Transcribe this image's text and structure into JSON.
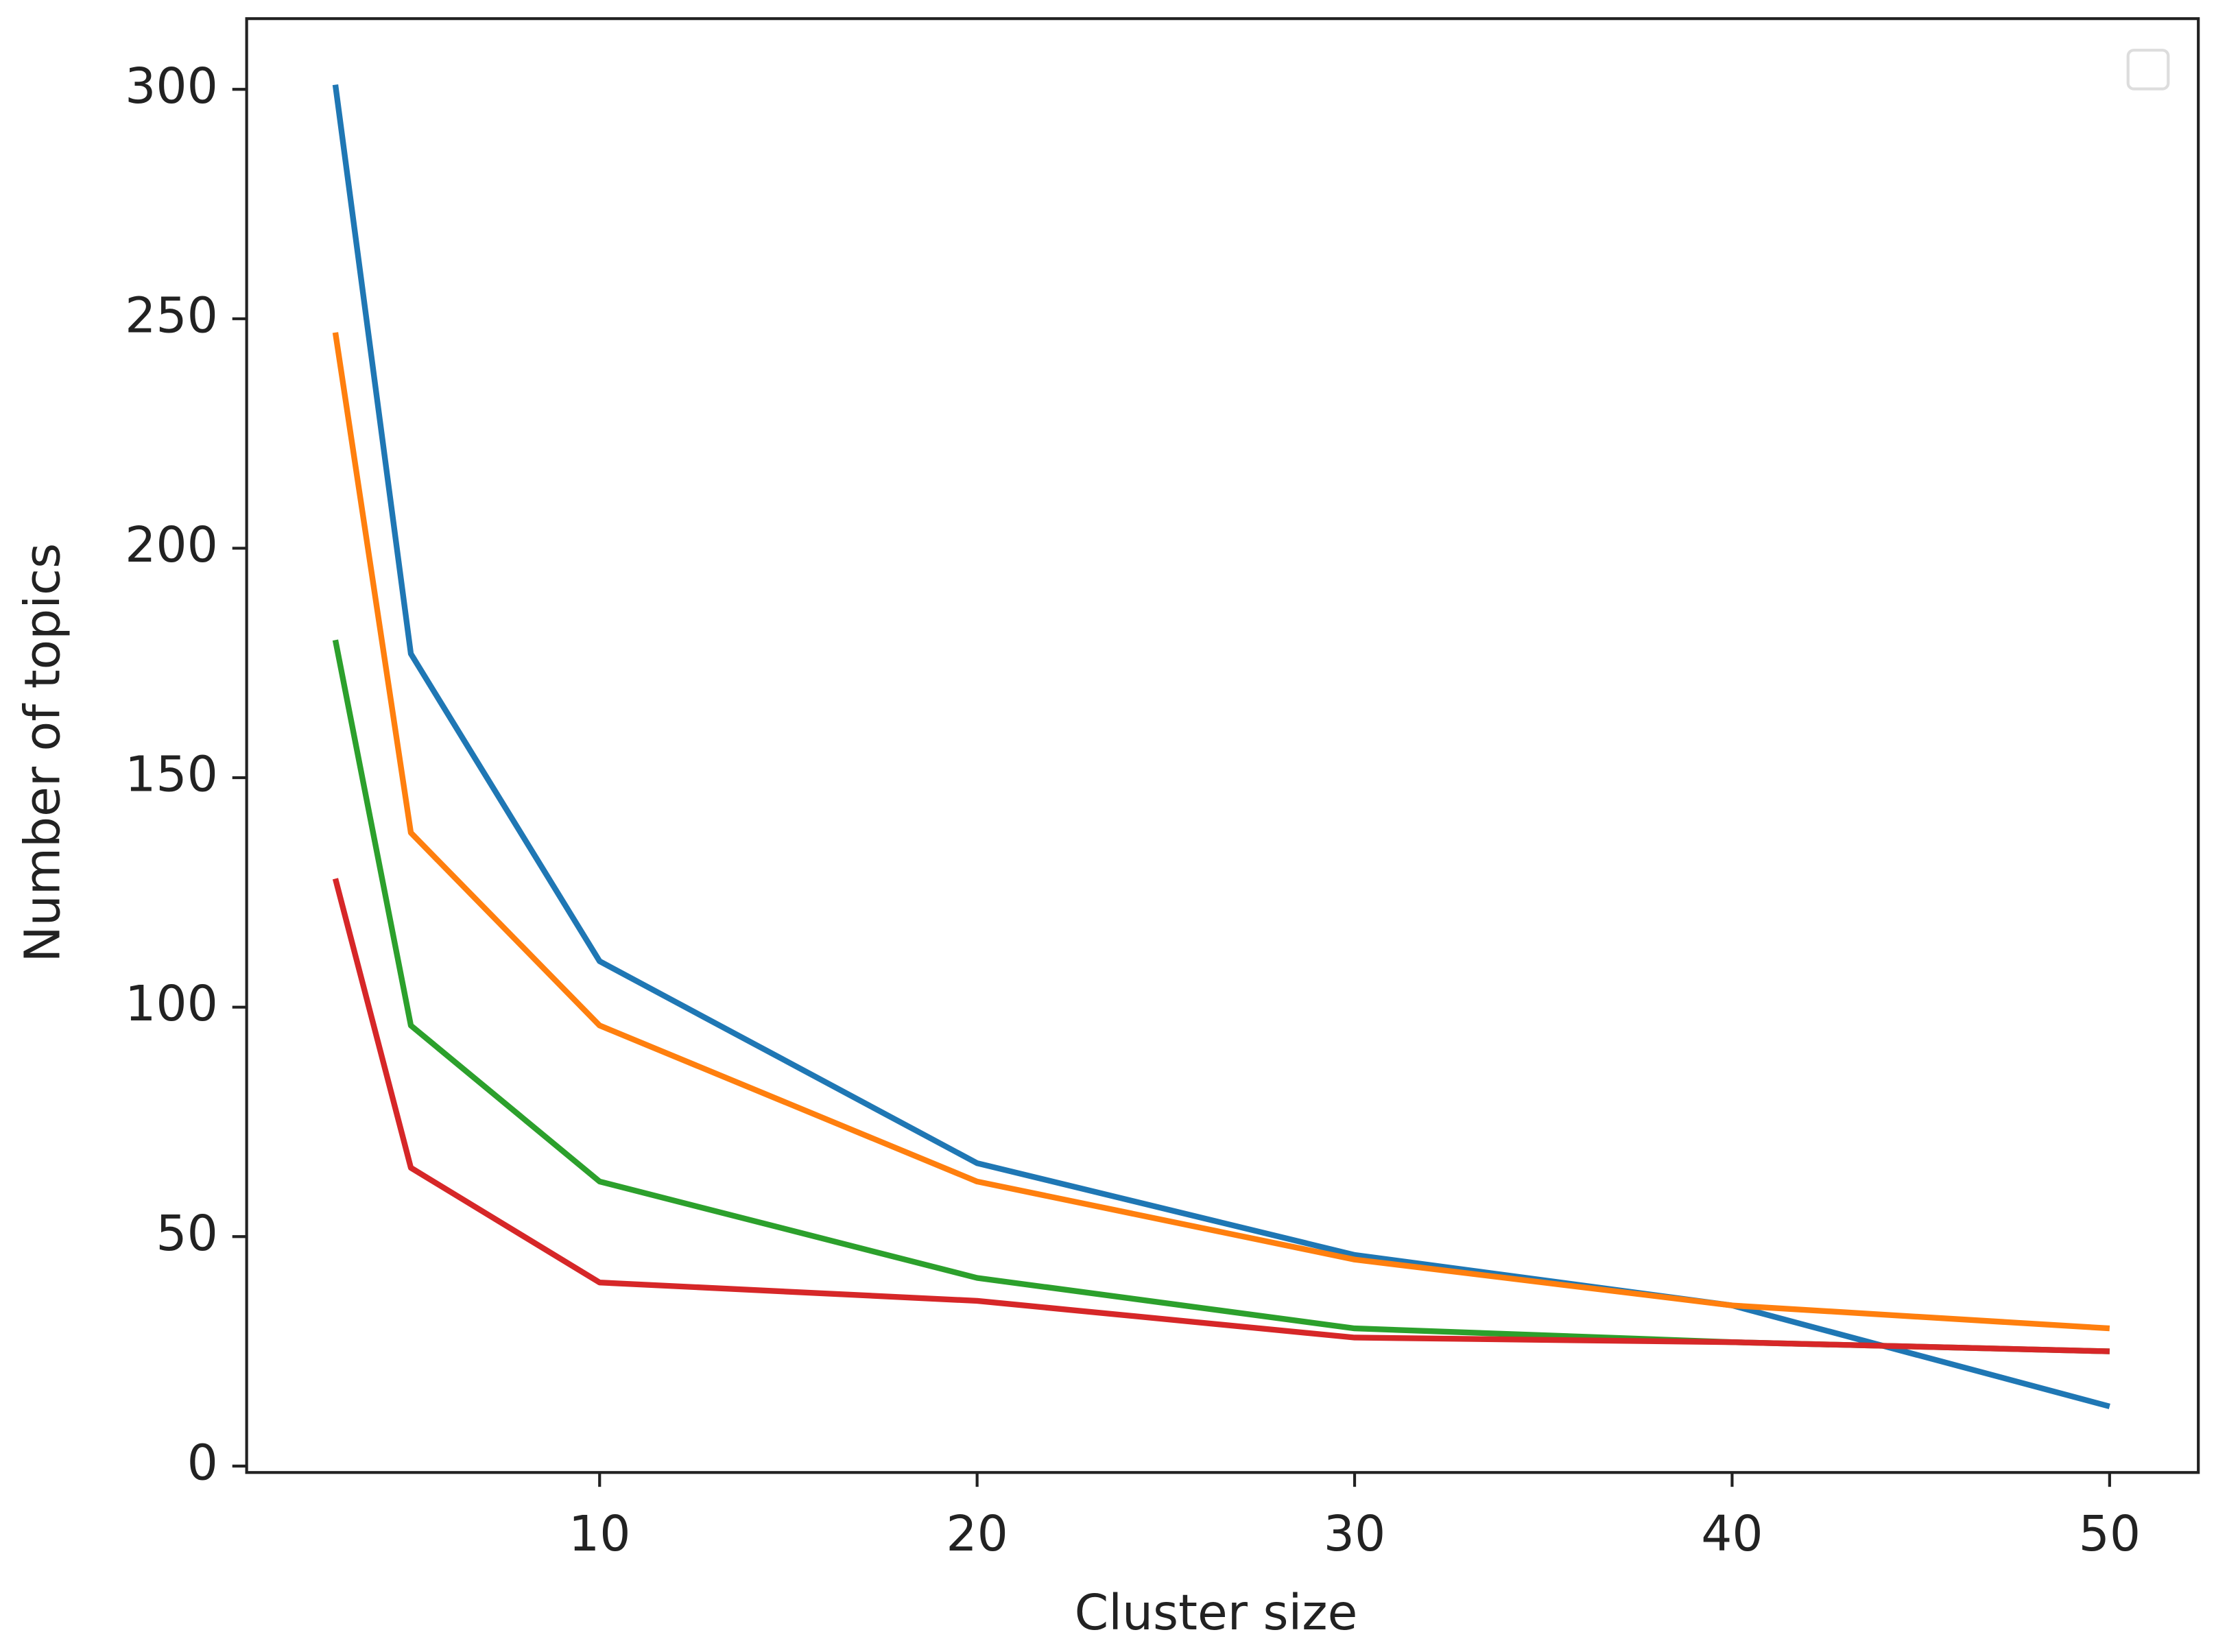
{
  "chart_data": {
    "type": "line",
    "x_label": "Cluster size",
    "y_label": "Number of topics",
    "x": [
      3,
      5,
      10,
      20,
      30,
      40,
      50
    ],
    "series": [
      {
        "color": "#1f77b4",
        "values": [
          301,
          177,
          110,
          66,
          46,
          35,
          13
        ]
      },
      {
        "color": "#ff7f0e",
        "values": [
          247,
          138,
          96,
          62,
          45,
          35,
          30
        ]
      },
      {
        "color": "#2ca02c",
        "values": [
          180,
          96,
          62,
          41,
          30,
          27,
          25
        ]
      },
      {
        "color": "#d62728",
        "values": [
          128,
          65,
          40,
          36,
          28,
          27,
          25
        ]
      }
    ],
    "xlim": [
      0.65,
      52.35
    ],
    "ylim": [
      -1.4,
      315.4
    ],
    "xticks": [
      10,
      20,
      30,
      40,
      50
    ],
    "yticks": [
      0,
      50,
      100,
      150,
      200,
      250,
      300
    ],
    "legend": "upper right",
    "grid": false
  }
}
